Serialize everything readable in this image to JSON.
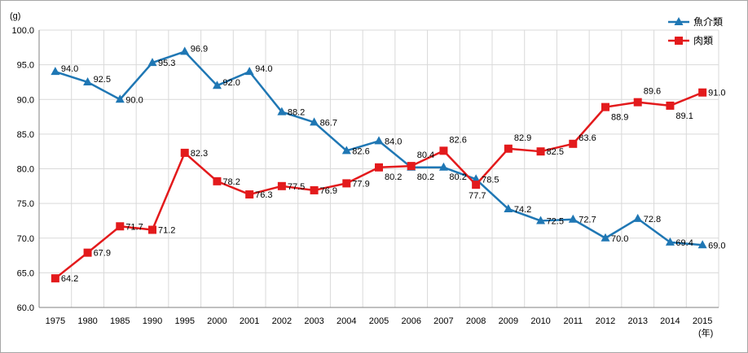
{
  "chart_data": {
    "type": "line",
    "title": "",
    "y_unit": "(g)",
    "x_unit": "(年)",
    "ylim": [
      60.0,
      100.0
    ],
    "ytick_step": 5.0,
    "yticks": [
      "60.0",
      "65.0",
      "70.0",
      "75.0",
      "80.0",
      "85.0",
      "90.0",
      "95.0",
      "100.0"
    ],
    "grid": true,
    "legend_position": "top-right",
    "categories": [
      "1975",
      "1980",
      "1985",
      "1990",
      "1995",
      "2000",
      "2001",
      "2002",
      "2003",
      "2004",
      "2005",
      "2006",
      "2007",
      "2008",
      "2009",
      "2010",
      "2011",
      "2012",
      "2013",
      "2014",
      "2015"
    ],
    "series": [
      {
        "name": "魚介類",
        "color": "#1f77b4",
        "marker": "triangle",
        "values": [
          94.0,
          92.5,
          90.0,
          95.3,
          96.9,
          92.0,
          94.0,
          88.2,
          86.7,
          82.6,
          84.0,
          80.2,
          80.2,
          78.5,
          74.2,
          72.5,
          72.7,
          70.0,
          72.8,
          69.4,
          69.0
        ],
        "labels": [
          "94.0",
          "92.5",
          "90.0",
          "95.3",
          "96.9",
          "92.0",
          "94.0",
          "88.2",
          "86.7",
          "82.6",
          "84.0",
          "80.2",
          "80.2",
          "78.5",
          "74.2",
          "72.5",
          "72.7",
          "70.0",
          "72.8",
          "69.4",
          "69.0"
        ]
      },
      {
        "name": "肉類",
        "color": "#e31a1c",
        "marker": "square",
        "values": [
          64.2,
          67.9,
          71.7,
          71.2,
          82.3,
          78.2,
          76.3,
          77.5,
          76.9,
          77.9,
          80.2,
          80.4,
          82.6,
          77.7,
          82.9,
          82.5,
          83.6,
          88.9,
          89.6,
          89.1,
          91.0
        ],
        "labels": [
          "64.2",
          "67.9",
          "71.7",
          "71.2",
          "82.3",
          "78.2",
          "76.3",
          "77.5",
          "76.9",
          "77.9",
          "80.2",
          "80.4",
          "82.6",
          "77.7",
          "82.9",
          "82.5",
          "83.6",
          "88.9",
          "89.6",
          "89.1",
          "91.0"
        ]
      }
    ]
  }
}
